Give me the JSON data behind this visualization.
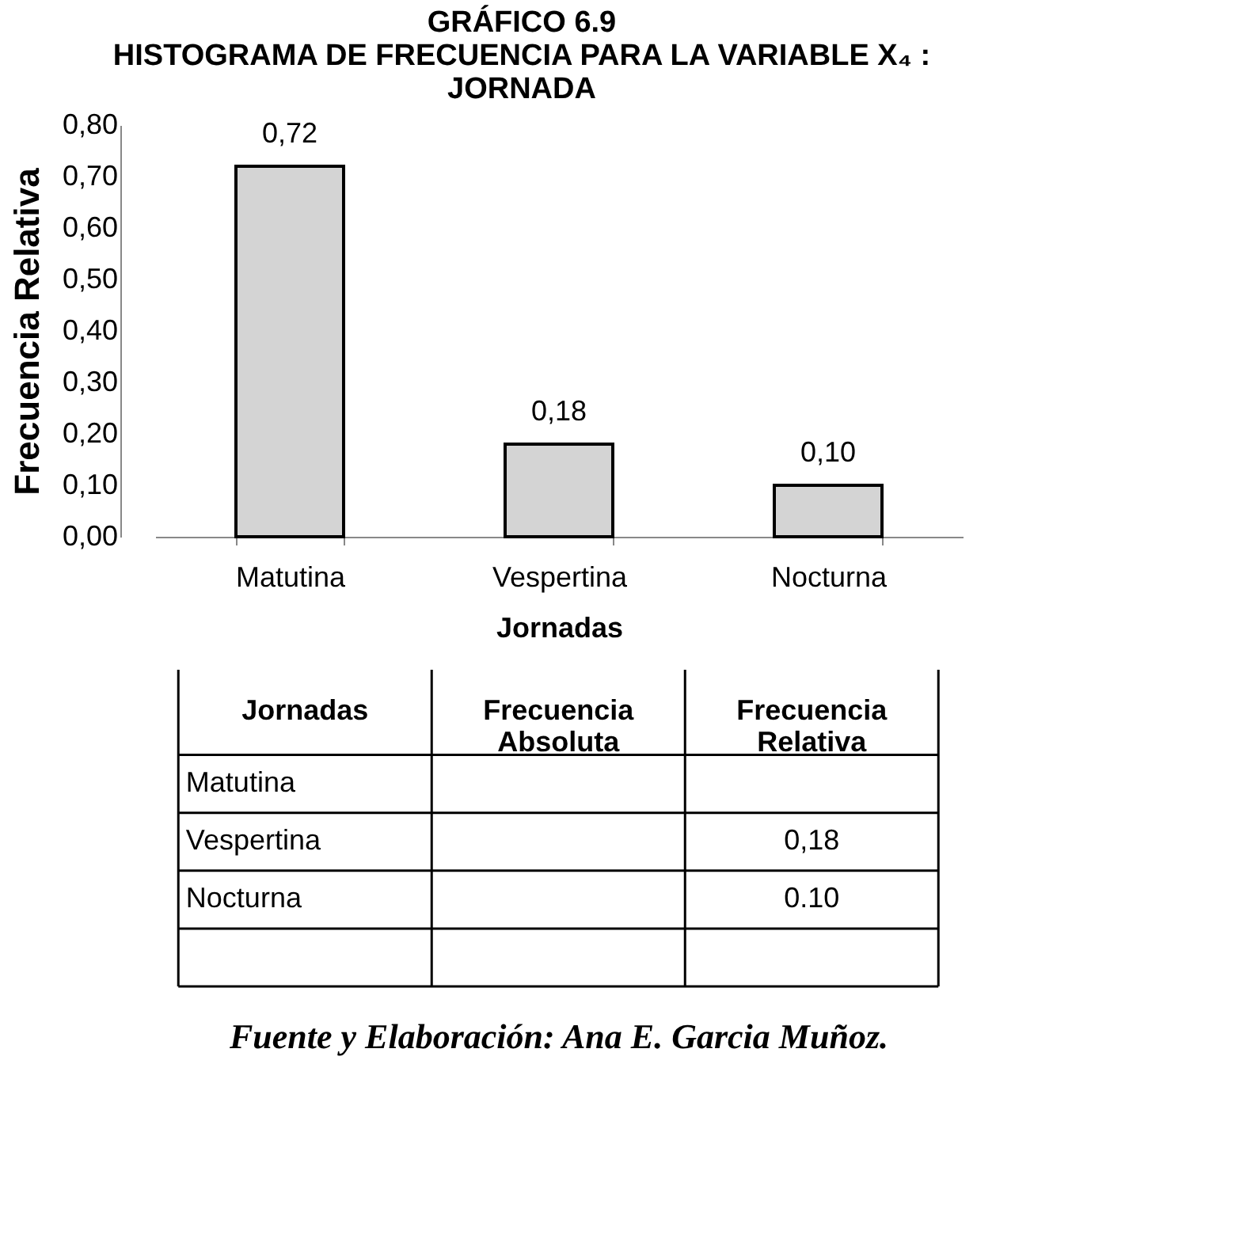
{
  "chart_data": {
    "type": "bar",
    "title": "GRÁFICO 6.9\nHISTOGRAMA DE FRECUENCIA PARA LA VARIABLE X₄ :\nJORNADA",
    "xlabel": "Jornadas",
    "ylabel": "Frecuencia Relativa",
    "categories": [
      "Matutina",
      "Vespertina",
      "Nocturna"
    ],
    "values": [
      0.72,
      0.18,
      0.1
    ],
    "color": "#d4d4d4",
    "value_labels": [
      "0,72",
      "0,18",
      "0,10"
    ],
    "ylim": [
      0,
      0.8
    ],
    "yticks": [
      {
        "value": 0,
        "label": "0,00"
      },
      {
        "value": 0.1,
        "label": "0,10"
      },
      {
        "value": 0.2,
        "label": "0,20"
      },
      {
        "value": 0.3,
        "label": "0,30"
      },
      {
        "value": 0.4,
        "label": "0,40"
      },
      {
        "value": 0.5,
        "label": "0,50"
      },
      {
        "value": 0.6,
        "label": "0,60"
      },
      {
        "value": 0.7,
        "label": "0,70"
      },
      {
        "value": 0.8,
        "label": "0,80"
      }
    ],
    "grid": false,
    "annotations": [
      "Jornadas",
      "Frecuencia\nAbsoluta",
      "Frecuencia\nRelativa",
      "0,18",
      "0.10",
      "Fuente y Elaboración: Ana E. Garcia Muñoz."
    ]
  }
}
